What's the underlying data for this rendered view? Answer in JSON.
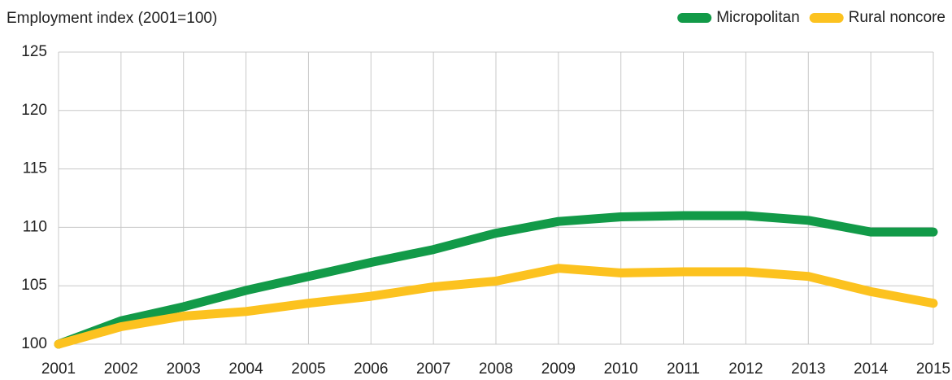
{
  "chart_data": {
    "type": "line",
    "title": "Employment index (2001=100)",
    "x": [
      2001,
      2002,
      2003,
      2004,
      2005,
      2006,
      2007,
      2008,
      2009,
      2010,
      2011,
      2012,
      2013,
      2014,
      2015
    ],
    "series": [
      {
        "name": "Micropolitan",
        "color": "#129a48",
        "values": [
          100,
          102.0,
          103.2,
          104.6,
          105.8,
          107.0,
          108.1,
          109.5,
          110.5,
          110.9,
          111.0,
          111.0,
          110.6,
          109.6,
          109.6
        ]
      },
      {
        "name": "Rural noncore",
        "color": "#fcc21f",
        "values": [
          100,
          101.5,
          102.4,
          102.8,
          103.5,
          104.1,
          104.9,
          105.4,
          106.5,
          106.1,
          106.2,
          106.2,
          105.8,
          104.5,
          103.5
        ]
      }
    ],
    "xlim": [
      2001,
      2015
    ],
    "xticks": [
      2001,
      2002,
      2003,
      2004,
      2005,
      2006,
      2007,
      2008,
      2009,
      2010,
      2011,
      2012,
      2013,
      2014,
      2015
    ],
    "ylim": [
      100,
      125
    ],
    "yticks": [
      100,
      105,
      110,
      115,
      120,
      125
    ],
    "grid": true,
    "legend": "top-right"
  }
}
